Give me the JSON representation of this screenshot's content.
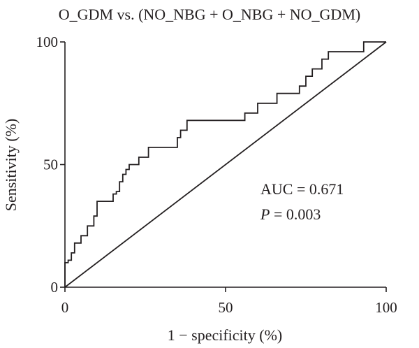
{
  "chart_data": {
    "type": "line",
    "title": "O_GDM vs. (NO_NBG + O_NBG + NO_GDM)",
    "xlabel": "1 − specificity (%)",
    "ylabel": "Sensitivity (%)",
    "xlim": [
      0,
      100
    ],
    "ylim": [
      0,
      100
    ],
    "x_ticks": [
      "0",
      "50",
      "100"
    ],
    "y_ticks": [
      "0",
      "50",
      "100"
    ],
    "grid": false,
    "series": [
      {
        "x": [
          0,
          0,
          1,
          1,
          2,
          2,
          2,
          3,
          3,
          3,
          5,
          5,
          5,
          7,
          7,
          7,
          9,
          9,
          9,
          10,
          10,
          10,
          10,
          10,
          15,
          15,
          16,
          16,
          17,
          17,
          17,
          18,
          18,
          19,
          19,
          20,
          20,
          23,
          23,
          26,
          26,
          35,
          35,
          36,
          36,
          38,
          38,
          56,
          56,
          60,
          60,
          66,
          66,
          73,
          73,
          75,
          75,
          77,
          77,
          80,
          80,
          82,
          82,
          93,
          93,
          100
        ],
        "y": [
          0,
          10,
          10,
          11,
          11,
          12,
          14,
          14,
          16,
          18,
          18,
          20,
          21,
          21,
          23,
          25,
          25,
          27,
          29,
          29,
          31,
          32,
          33,
          35,
          35,
          38,
          38,
          39,
          39,
          41,
          43,
          43,
          46,
          46,
          48,
          48,
          50,
          50,
          53,
          53,
          57,
          57,
          61,
          61,
          64,
          64,
          68,
          68,
          71,
          71,
          75,
          75,
          79,
          79,
          82,
          82,
          86,
          86,
          89,
          89,
          93,
          93,
          96,
          96,
          100,
          100
        ]
      },
      {
        "x": [
          0,
          100
        ],
        "y": [
          0,
          100
        ]
      }
    ]
  },
  "annotations": {
    "auc": "AUC = 0.671",
    "p_symbol": "P",
    "p_rest": " = 0.003"
  }
}
